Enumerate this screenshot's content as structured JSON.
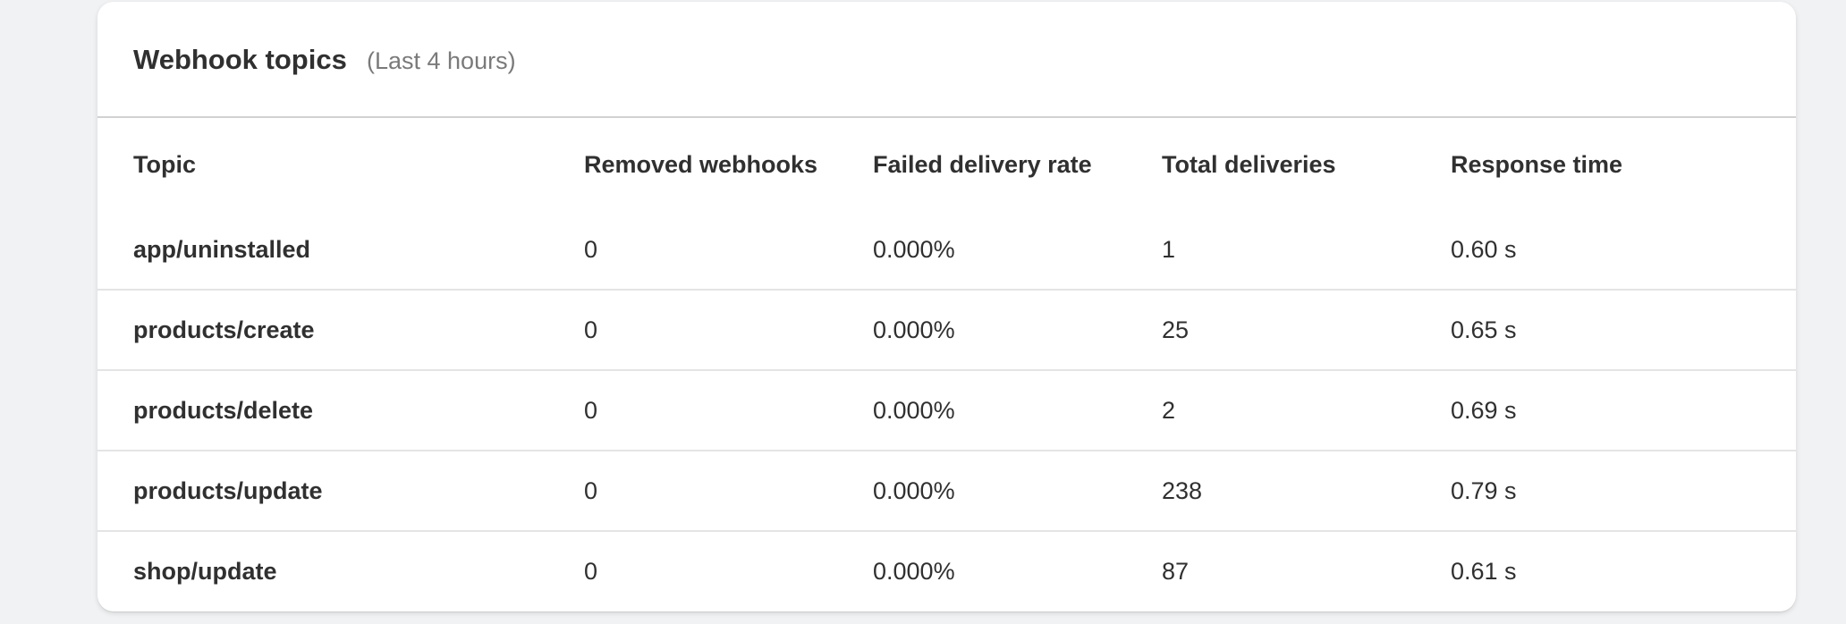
{
  "card": {
    "title": "Webhook topics",
    "subtitle": "(Last 4 hours)"
  },
  "table": {
    "columns": [
      "Topic",
      "Removed webhooks",
      "Failed delivery rate",
      "Total deliveries",
      "Response time"
    ],
    "rows": [
      {
        "topic": "app/uninstalled",
        "removed": "0",
        "failed": "0.000%",
        "total": "1",
        "response": "0.60 s"
      },
      {
        "topic": "products/create",
        "removed": "0",
        "failed": "0.000%",
        "total": "25",
        "response": "0.65 s"
      },
      {
        "topic": "products/delete",
        "removed": "0",
        "failed": "0.000%",
        "total": "2",
        "response": "0.69 s"
      },
      {
        "topic": "products/update",
        "removed": "0",
        "failed": "0.000%",
        "total": "238",
        "response": "0.79 s"
      },
      {
        "topic": "shop/update",
        "removed": "0",
        "failed": "0.000%",
        "total": "87",
        "response": "0.61 s"
      }
    ]
  }
}
